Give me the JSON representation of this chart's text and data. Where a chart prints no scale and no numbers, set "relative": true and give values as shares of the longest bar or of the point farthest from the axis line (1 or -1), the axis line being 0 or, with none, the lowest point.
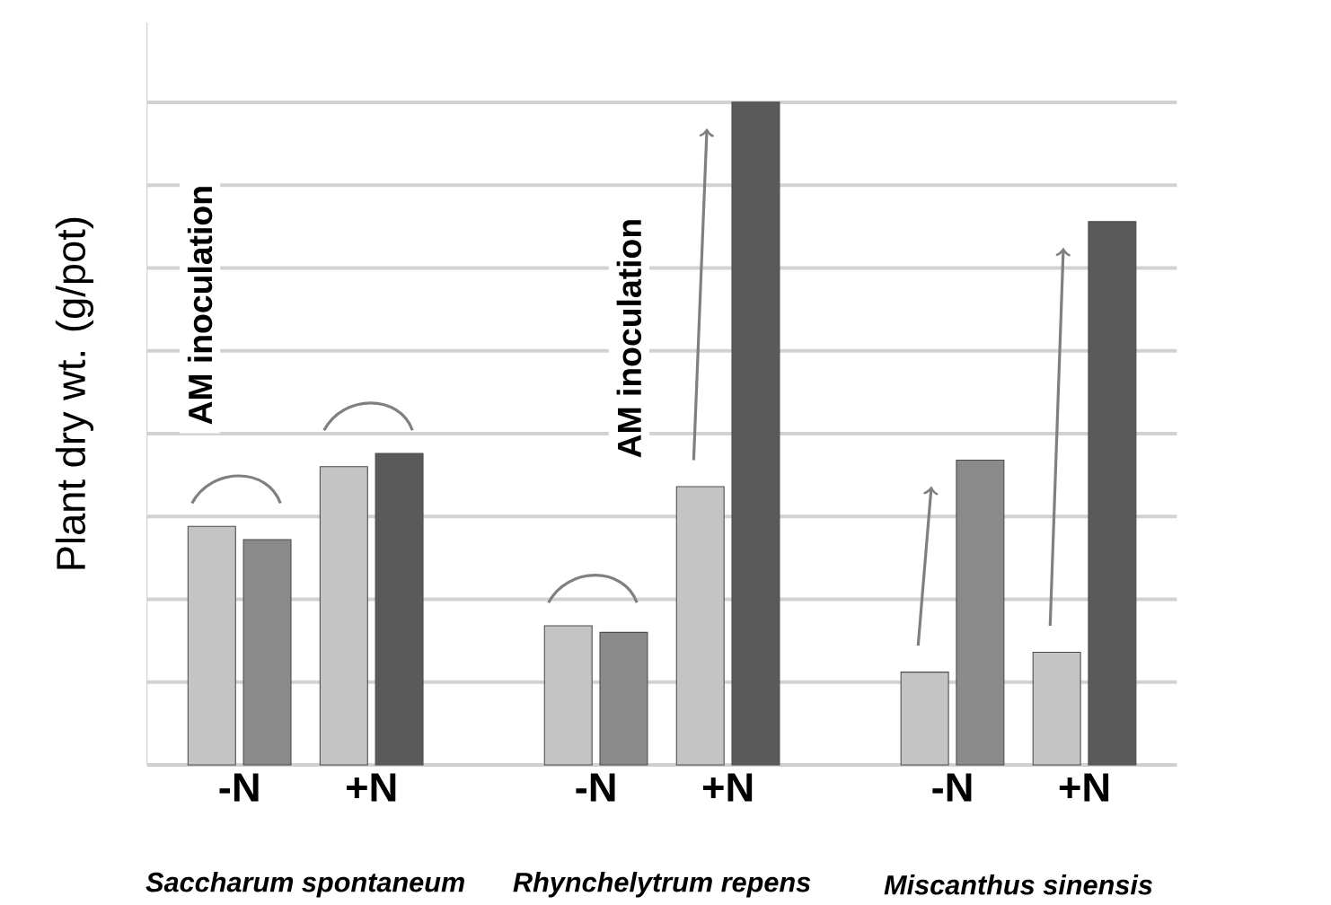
{
  "chart_data": {
    "type": "bar",
    "relative": true,
    "ylabel": "Plant dry wt. (g/pot)",
    "categories": [
      "-N",
      "+N",
      "-N",
      "+N",
      "-N",
      "+N"
    ],
    "series": [
      {
        "color": "#c4c4c4",
        "values": [
          0.36,
          0.45,
          0.21,
          0.42,
          0.14,
          0.17
        ]
      },
      {
        "color": "#8a8a8a",
        "colors": [
          "#8a8a8a",
          "#5a5a5a",
          "#8a8a8a",
          "#5a5a5a",
          "#8a8a8a",
          "#5a5a5a"
        ],
        "values": [
          0.34,
          0.47,
          0.2,
          1,
          0.46,
          0.82
        ]
      }
    ],
    "annotations": [
      "Saccharum spontaneum",
      "Rhynchelytrum repens",
      "Miscanthus sinensis",
      "AM inoculation",
      "AM inoculation"
    ],
    "grid": "y"
  }
}
